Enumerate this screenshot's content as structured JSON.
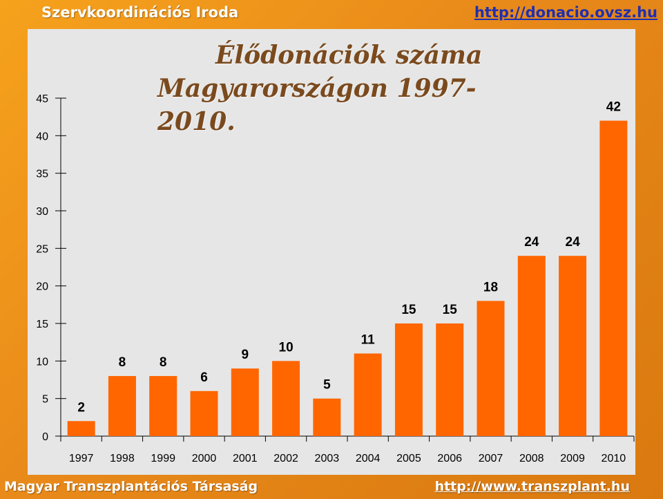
{
  "header": {
    "org": "Szervkoordinációs Iroda",
    "link": "http://donacio.ovsz.hu"
  },
  "footer": {
    "org": "Magyar Transzplantációs Társaság",
    "link": "http://www.transzplant.hu"
  },
  "colors": {
    "bar": "#ff6600",
    "axis": "#000000",
    "title": "#7a4a1e"
  },
  "chart_data": {
    "type": "bar",
    "title_line1": "Élődonációk száma",
    "title_line2": "Magyarországon 1997-2010.",
    "categories": [
      "1997",
      "1998",
      "1999",
      "2000",
      "2001",
      "2002",
      "2003",
      "2004",
      "2005",
      "2006",
      "2007",
      "2008",
      "2009",
      "2010"
    ],
    "values": [
      2,
      8,
      8,
      6,
      9,
      10,
      5,
      11,
      15,
      15,
      18,
      24,
      24,
      42
    ],
    "ylim": [
      0,
      45
    ],
    "yticks": [
      0,
      5,
      10,
      15,
      20,
      25,
      30,
      35,
      40,
      45
    ],
    "grid": false,
    "data_labels": true
  }
}
